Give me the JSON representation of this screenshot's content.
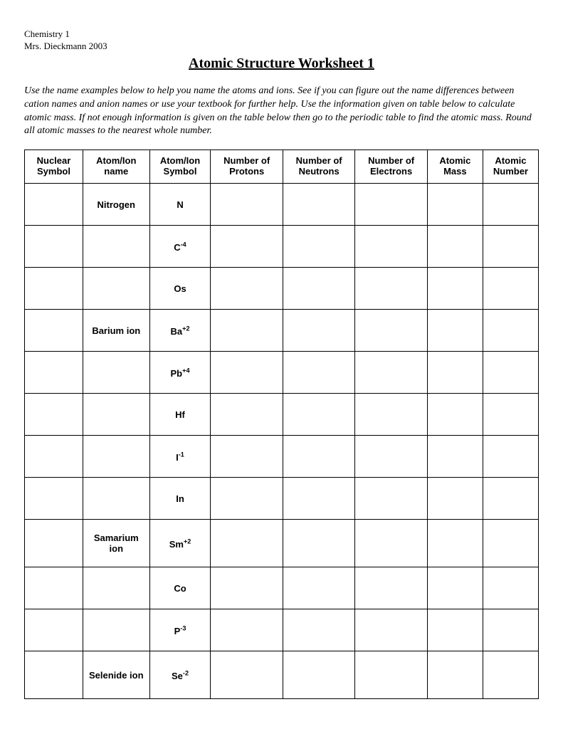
{
  "meta": {
    "course": "Chemistry 1",
    "teacher": "Mrs. Dieckmann 2003"
  },
  "title": "Atomic Structure Worksheet 1",
  "instructions": "Use the name examples below to help you name the atoms and ions.  See if you can figure out the name differences between cation names and anion names or use your textbook for further help.  Use the information given on table below  to calculate atomic mass.  If not enough information is given on the table below then go to the periodic table to find the atomic mass.  Round all atomic masses to the nearest whole number.",
  "table": {
    "headers": [
      "Nuclear Symbol",
      "Atom/Ion name",
      "Atom/Ion Symbol",
      "Number of Protons",
      "Number of Neutrons",
      "Number of Electrons",
      "Atomic Mass",
      "Atomic Number"
    ],
    "rows": [
      {
        "nuclear": "",
        "name": "Nitrogen",
        "symbol": "N",
        "sup": "",
        "p": "",
        "n": "",
        "e": "",
        "mass": "",
        "num": ""
      },
      {
        "nuclear": "",
        "name": "",
        "symbol": "C",
        "sup": "-4",
        "p": "",
        "n": "",
        "e": "",
        "mass": "",
        "num": ""
      },
      {
        "nuclear": "",
        "name": "",
        "symbol": "Os",
        "sup": "",
        "p": "",
        "n": "",
        "e": "",
        "mass": "",
        "num": ""
      },
      {
        "nuclear": "",
        "name": "Barium ion",
        "symbol": "Ba",
        "sup": "+2",
        "p": "",
        "n": "",
        "e": "",
        "mass": "",
        "num": ""
      },
      {
        "nuclear": "",
        "name": "",
        "symbol": "Pb",
        "sup": "+4",
        "p": "",
        "n": "",
        "e": "",
        "mass": "",
        "num": ""
      },
      {
        "nuclear": "",
        "name": "",
        "symbol": "Hf",
        "sup": "",
        "p": "",
        "n": "",
        "e": "",
        "mass": "",
        "num": ""
      },
      {
        "nuclear": "",
        "name": "",
        "symbol": "I",
        "sup": "-1",
        "p": "",
        "n": "",
        "e": "",
        "mass": "",
        "num": ""
      },
      {
        "nuclear": "",
        "name": "",
        "symbol": "In",
        "sup": "",
        "p": "",
        "n": "",
        "e": "",
        "mass": "",
        "num": ""
      },
      {
        "nuclear": "",
        "name": "Samarium ion",
        "symbol": "Sm",
        "sup": "+2",
        "p": "",
        "n": "",
        "e": "",
        "mass": "",
        "num": "",
        "tall": true
      },
      {
        "nuclear": "",
        "name": "",
        "symbol": "Co",
        "sup": "",
        "p": "",
        "n": "",
        "e": "",
        "mass": "",
        "num": ""
      },
      {
        "nuclear": "",
        "name": "",
        "symbol": "P",
        "sup": "-3",
        "p": "",
        "n": "",
        "e": "",
        "mass": "",
        "num": ""
      },
      {
        "nuclear": "",
        "name": "Selenide ion",
        "symbol": "Se",
        "sup": "-2",
        "p": "",
        "n": "",
        "e": "",
        "mass": "",
        "num": "",
        "tall": true
      }
    ]
  }
}
